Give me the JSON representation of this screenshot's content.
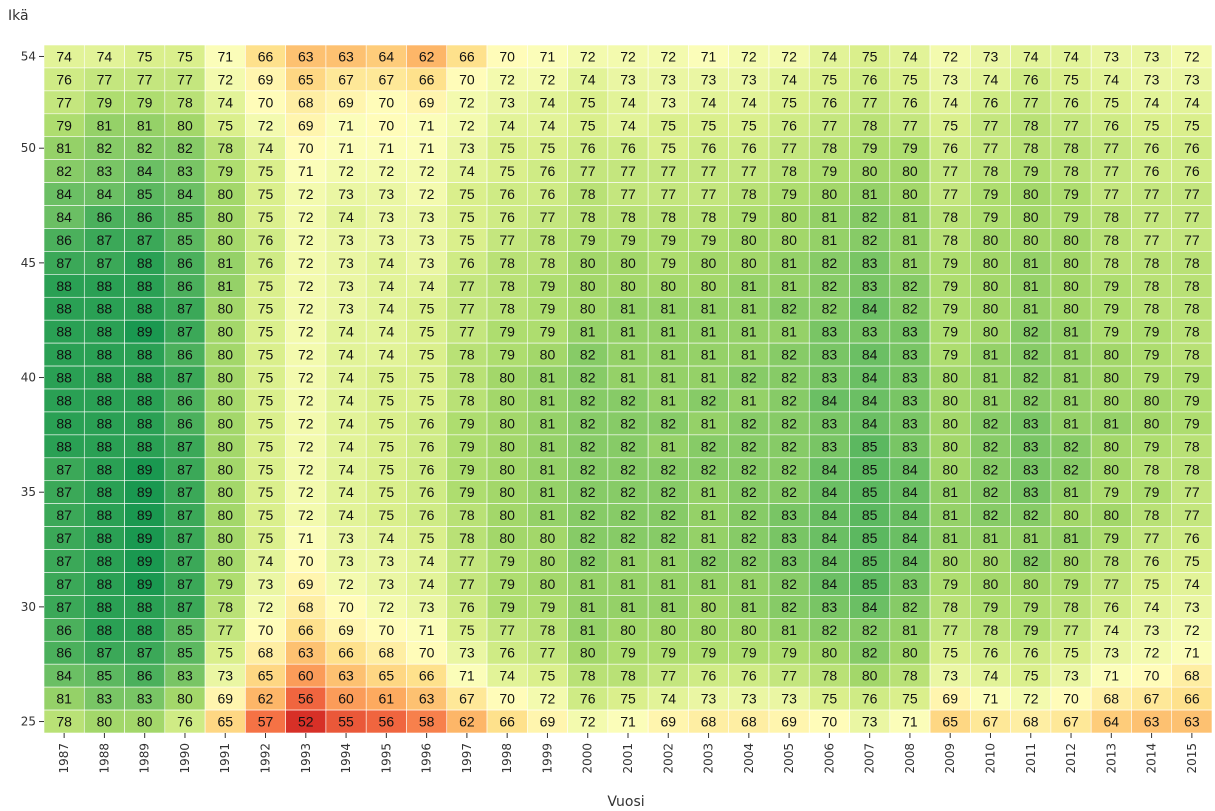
{
  "chart_data": {
    "type": "heatmap",
    "title": "",
    "xlabel": "Vuosi",
    "ylabel": "Ikä",
    "x": [
      1987,
      1988,
      1989,
      1990,
      1991,
      1992,
      1993,
      1994,
      1995,
      1996,
      1997,
      1998,
      1999,
      2000,
      2001,
      2002,
      2003,
      2004,
      2005,
      2006,
      2007,
      2008,
      2009,
      2010,
      2011,
      2012,
      2013,
      2014,
      2015
    ],
    "y": [
      54,
      53,
      52,
      51,
      50,
      49,
      48,
      47,
      46,
      45,
      44,
      43,
      42,
      41,
      40,
      39,
      38,
      37,
      36,
      35,
      34,
      33,
      32,
      31,
      30,
      29,
      28,
      27,
      26,
      25
    ],
    "y_tick_labels": [
      "54",
      "50",
      "45",
      "40",
      "35",
      "30",
      "25"
    ],
    "values": [
      [
        74,
        74,
        75,
        75,
        71,
        66,
        63,
        63,
        64,
        62,
        66,
        70,
        71,
        72,
        72,
        72,
        71,
        72,
        72,
        74,
        75,
        74,
        72,
        73,
        74,
        74,
        73,
        73,
        72
      ],
      [
        76,
        77,
        77,
        77,
        72,
        69,
        65,
        67,
        67,
        66,
        70,
        72,
        72,
        74,
        73,
        73,
        73,
        73,
        74,
        75,
        76,
        75,
        73,
        74,
        76,
        75,
        74,
        73,
        73
      ],
      [
        77,
        79,
        79,
        78,
        74,
        70,
        68,
        69,
        70,
        69,
        72,
        73,
        74,
        75,
        74,
        73,
        74,
        74,
        75,
        76,
        77,
        76,
        74,
        76,
        77,
        76,
        75,
        74,
        74
      ],
      [
        79,
        81,
        81,
        80,
        75,
        72,
        69,
        71,
        70,
        71,
        72,
        74,
        74,
        75,
        74,
        75,
        75,
        75,
        76,
        77,
        78,
        77,
        75,
        77,
        78,
        77,
        76,
        75,
        75
      ],
      [
        81,
        82,
        82,
        82,
        78,
        74,
        70,
        71,
        71,
        71,
        73,
        75,
        75,
        76,
        76,
        75,
        76,
        76,
        77,
        78,
        79,
        79,
        76,
        77,
        78,
        78,
        77,
        76,
        76
      ],
      [
        82,
        83,
        84,
        83,
        79,
        75,
        71,
        72,
        72,
        72,
        74,
        75,
        76,
        77,
        77,
        77,
        77,
        77,
        78,
        79,
        80,
        80,
        77,
        78,
        79,
        78,
        77,
        76,
        76
      ],
      [
        84,
        84,
        85,
        84,
        80,
        75,
        72,
        73,
        73,
        72,
        75,
        76,
        76,
        78,
        77,
        77,
        77,
        78,
        79,
        80,
        81,
        80,
        77,
        79,
        80,
        79,
        77,
        77,
        77
      ],
      [
        84,
        86,
        86,
        85,
        80,
        75,
        72,
        74,
        73,
        73,
        75,
        76,
        77,
        78,
        78,
        78,
        78,
        79,
        80,
        81,
        82,
        81,
        78,
        79,
        80,
        79,
        78,
        77,
        77
      ],
      [
        86,
        87,
        87,
        85,
        80,
        76,
        72,
        73,
        73,
        73,
        75,
        77,
        78,
        79,
        79,
        79,
        79,
        80,
        80,
        81,
        82,
        81,
        78,
        80,
        80,
        80,
        78,
        77,
        77
      ],
      [
        87,
        87,
        88,
        86,
        81,
        76,
        72,
        73,
        74,
        73,
        76,
        78,
        78,
        80,
        80,
        79,
        80,
        80,
        81,
        82,
        83,
        81,
        79,
        80,
        81,
        80,
        78,
        78,
        78
      ],
      [
        88,
        88,
        88,
        86,
        81,
        75,
        72,
        73,
        74,
        74,
        77,
        78,
        79,
        80,
        80,
        80,
        80,
        81,
        81,
        82,
        83,
        82,
        79,
        80,
        81,
        80,
        79,
        78,
        78
      ],
      [
        88,
        88,
        88,
        87,
        80,
        75,
        72,
        73,
        74,
        75,
        77,
        78,
        79,
        80,
        81,
        81,
        81,
        81,
        82,
        82,
        84,
        82,
        79,
        80,
        81,
        80,
        79,
        78,
        78
      ],
      [
        88,
        88,
        89,
        87,
        80,
        75,
        72,
        74,
        74,
        75,
        77,
        79,
        79,
        81,
        81,
        81,
        81,
        81,
        81,
        83,
        83,
        83,
        79,
        80,
        82,
        81,
        79,
        79,
        78
      ],
      [
        88,
        88,
        88,
        86,
        80,
        75,
        72,
        74,
        74,
        75,
        78,
        79,
        80,
        82,
        81,
        81,
        81,
        81,
        82,
        83,
        84,
        83,
        79,
        81,
        82,
        81,
        80,
        79,
        78
      ],
      [
        88,
        88,
        88,
        87,
        80,
        75,
        72,
        74,
        75,
        75,
        78,
        80,
        81,
        82,
        81,
        81,
        81,
        82,
        82,
        83,
        84,
        83,
        80,
        81,
        82,
        81,
        80,
        79,
        79
      ],
      [
        88,
        88,
        88,
        86,
        80,
        75,
        72,
        74,
        75,
        75,
        78,
        80,
        81,
        82,
        82,
        81,
        82,
        81,
        82,
        84,
        84,
        83,
        80,
        81,
        82,
        81,
        80,
        80,
        79
      ],
      [
        88,
        88,
        88,
        86,
        80,
        75,
        72,
        74,
        75,
        76,
        79,
        80,
        81,
        82,
        82,
        82,
        81,
        82,
        82,
        83,
        84,
        83,
        80,
        82,
        83,
        81,
        81,
        80,
        79
      ],
      [
        88,
        88,
        88,
        87,
        80,
        75,
        72,
        74,
        75,
        76,
        79,
        80,
        81,
        82,
        82,
        81,
        82,
        82,
        82,
        83,
        85,
        83,
        80,
        82,
        83,
        82,
        80,
        79,
        78
      ],
      [
        87,
        88,
        89,
        87,
        80,
        75,
        72,
        74,
        75,
        76,
        79,
        80,
        81,
        82,
        82,
        82,
        82,
        82,
        82,
        84,
        85,
        84,
        80,
        82,
        83,
        82,
        80,
        78,
        78
      ],
      [
        87,
        88,
        89,
        87,
        80,
        75,
        72,
        74,
        75,
        76,
        79,
        80,
        81,
        82,
        82,
        82,
        81,
        82,
        82,
        84,
        85,
        84,
        81,
        82,
        83,
        81,
        79,
        79,
        77
      ],
      [
        87,
        88,
        89,
        87,
        80,
        75,
        72,
        74,
        75,
        76,
        78,
        80,
        81,
        82,
        82,
        82,
        81,
        82,
        83,
        84,
        85,
        84,
        81,
        82,
        82,
        80,
        80,
        78,
        77
      ],
      [
        87,
        88,
        89,
        87,
        80,
        75,
        71,
        73,
        74,
        75,
        78,
        80,
        80,
        82,
        82,
        82,
        81,
        82,
        83,
        84,
        85,
        84,
        81,
        81,
        81,
        81,
        79,
        77,
        76
      ],
      [
        87,
        88,
        89,
        87,
        80,
        74,
        70,
        73,
        73,
        74,
        77,
        79,
        80,
        82,
        81,
        81,
        82,
        82,
        83,
        84,
        85,
        84,
        80,
        80,
        82,
        80,
        78,
        76,
        75
      ],
      [
        87,
        88,
        89,
        87,
        79,
        73,
        69,
        72,
        73,
        74,
        77,
        79,
        80,
        81,
        81,
        81,
        81,
        81,
        82,
        84,
        85,
        83,
        79,
        80,
        80,
        79,
        77,
        75,
        74
      ],
      [
        87,
        88,
        88,
        87,
        78,
        72,
        68,
        70,
        72,
        73,
        76,
        79,
        79,
        81,
        81,
        81,
        80,
        81,
        82,
        83,
        84,
        82,
        78,
        79,
        79,
        78,
        76,
        74,
        73
      ],
      [
        86,
        88,
        88,
        85,
        77,
        70,
        66,
        69,
        70,
        71,
        75,
        77,
        78,
        81,
        80,
        80,
        80,
        80,
        81,
        82,
        82,
        81,
        77,
        78,
        79,
        77,
        74,
        73,
        72
      ],
      [
        86,
        87,
        87,
        85,
        75,
        68,
        63,
        66,
        68,
        70,
        73,
        76,
        77,
        80,
        79,
        79,
        79,
        79,
        79,
        80,
        82,
        80,
        75,
        76,
        76,
        75,
        73,
        72,
        71
      ],
      [
        84,
        85,
        86,
        83,
        73,
        65,
        60,
        63,
        65,
        66,
        71,
        74,
        75,
        78,
        78,
        77,
        76,
        76,
        77,
        78,
        80,
        78,
        73,
        74,
        75,
        73,
        71,
        70,
        68
      ],
      [
        81,
        83,
        83,
        80,
        69,
        62,
        56,
        60,
        61,
        63,
        67,
        70,
        72,
        76,
        75,
        74,
        73,
        73,
        73,
        75,
        76,
        75,
        69,
        71,
        72,
        70,
        68,
        67,
        66
      ],
      [
        78,
        80,
        80,
        76,
        65,
        57,
        52,
        55,
        56,
        58,
        62,
        66,
        69,
        72,
        71,
        69,
        68,
        68,
        69,
        70,
        73,
        71,
        65,
        67,
        68,
        67,
        64,
        63,
        63
      ]
    ],
    "colormap": [
      "#d73027",
      "#f46d43",
      "#fdae61",
      "#fee08b",
      "#ffffbf",
      "#d9ef8b",
      "#a6d96a",
      "#66bd63",
      "#1a9850"
    ],
    "grid": false,
    "legend": "none"
  }
}
